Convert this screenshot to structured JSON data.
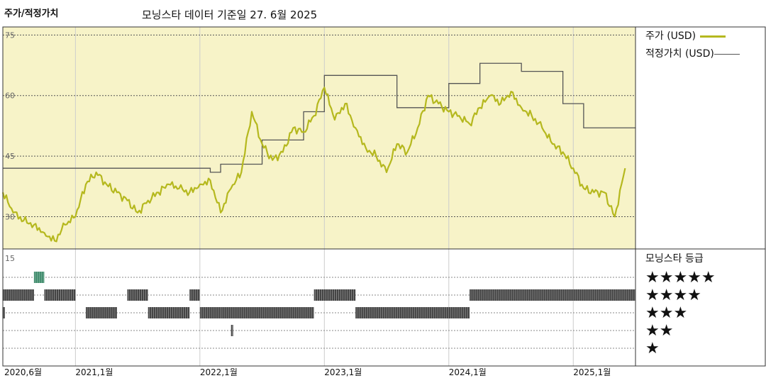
{
  "header": {
    "title": "주가/적정가치",
    "subtitle": "모닝스타 데이터 기준일 27. 6월 2025"
  },
  "legend": {
    "price_label": "주가 (USD)",
    "fair_label": "적정가치 (USD)"
  },
  "rating": {
    "title": "모닝스타 등급",
    "stars5": "★★★★★",
    "stars4": "★★★★",
    "stars3": "★★★",
    "stars2": "★★",
    "stars1": "★"
  },
  "colors": {
    "price": "#b5b81e",
    "fair": "#555555",
    "plot_bg": "#f7f3c8",
    "rating_bar": "#444444",
    "rating_5": "#3d8a6a"
  },
  "chart_data": {
    "type": "line",
    "title": "주가/적정가치",
    "subtitle": "모닝스타 데이터 기준일 27. 6월 2025",
    "x_range": [
      "2020-06",
      "2025-07"
    ],
    "x_ticks": [
      "2020,6월",
      "2021,1월",
      "2022,1월",
      "2023,1월",
      "2024,1월",
      "2025,1월"
    ],
    "x_tick_dates": [
      "2020-06",
      "2021-01",
      "2022-01",
      "2023-01",
      "2024-01",
      "2025-01"
    ],
    "ylim": [
      22,
      77
    ],
    "y_ticks": [
      30,
      45,
      60,
      75
    ],
    "y_ticks_lower": [
      15
    ],
    "grid": true,
    "legend_position": "top-right",
    "series": [
      {
        "name": "주가 (USD)",
        "x": [
          "2020-06",
          "2020-07",
          "2020-08",
          "2020-09",
          "2020-10",
          "2020-11",
          "2020-12",
          "2021-01",
          "2021-02",
          "2021-03",
          "2021-04",
          "2021-05",
          "2021-06",
          "2021-07",
          "2021-08",
          "2021-09",
          "2021-10",
          "2021-11",
          "2021-12",
          "2022-01",
          "2022-02",
          "2022-03",
          "2022-04",
          "2022-05",
          "2022-06",
          "2022-07",
          "2022-08",
          "2022-09",
          "2022-10",
          "2022-11",
          "2022-12",
          "2023-01",
          "2023-02",
          "2023-03",
          "2023-04",
          "2023-05",
          "2023-06",
          "2023-07",
          "2023-08",
          "2023-09",
          "2023-10",
          "2023-11",
          "2023-12",
          "2024-01",
          "2024-02",
          "2024-03",
          "2024-04",
          "2024-05",
          "2024-06",
          "2024-07",
          "2024-08",
          "2024-09",
          "2024-10",
          "2024-11",
          "2024-12",
          "2025-01",
          "2025-02",
          "2025-03",
          "2025-04",
          "2025-05",
          "2025-06"
        ],
        "values": [
          36,
          31,
          29,
          28,
          26,
          24,
          28,
          30,
          38,
          41,
          38,
          36,
          34,
          31,
          34,
          36,
          38,
          37,
          36,
          38,
          39,
          31,
          37,
          41,
          56,
          48,
          44,
          46,
          52,
          51,
          55,
          62,
          54,
          58,
          52,
          47,
          45,
          41,
          48,
          46,
          52,
          60,
          58,
          56,
          55,
          53,
          57,
          60,
          58,
          61,
          57,
          55,
          52,
          48,
          46,
          42,
          37,
          36,
          36,
          30,
          42
        ]
      },
      {
        "name": "적정가치 (USD)",
        "type": "step",
        "x": [
          "2020-06",
          "2021-03",
          "2022-02",
          "2022-03",
          "2022-07",
          "2022-09",
          "2022-11",
          "2023-01",
          "2023-06",
          "2023-08",
          "2024-01",
          "2024-04",
          "2024-08",
          "2024-12",
          "2025-02",
          "2025-07"
        ],
        "values": [
          42,
          42,
          41,
          43,
          49,
          49,
          56,
          65,
          65,
          57,
          63,
          68,
          66,
          58,
          52,
          52
        ]
      }
    ],
    "rating_history": [
      {
        "stars": 5,
        "segments": [
          [
            "2020-09",
            "2020-10"
          ]
        ]
      },
      {
        "stars": 4,
        "segments": [
          [
            "2020-06",
            "2020-09"
          ],
          [
            "2020-10",
            "2021-01"
          ],
          [
            "2021-06",
            "2021-08"
          ],
          [
            "2021-12",
            "2022-01"
          ],
          [
            "2022-12",
            "2023-04"
          ],
          [
            "2024-03",
            "2025-07"
          ]
        ]
      },
      {
        "stars": 3,
        "segments": [
          [
            "2020-06",
            "2020-06"
          ],
          [
            "2021-02",
            "2021-05"
          ],
          [
            "2021-08",
            "2021-12"
          ],
          [
            "2022-01",
            "2022-03"
          ],
          [
            "2022-03",
            "2022-12"
          ],
          [
            "2023-04",
            "2024-03"
          ]
        ]
      },
      {
        "stars": 2,
        "segments": [
          [
            "2022-04",
            "2022-04"
          ]
        ]
      },
      {
        "stars": 1,
        "segments": []
      }
    ]
  }
}
